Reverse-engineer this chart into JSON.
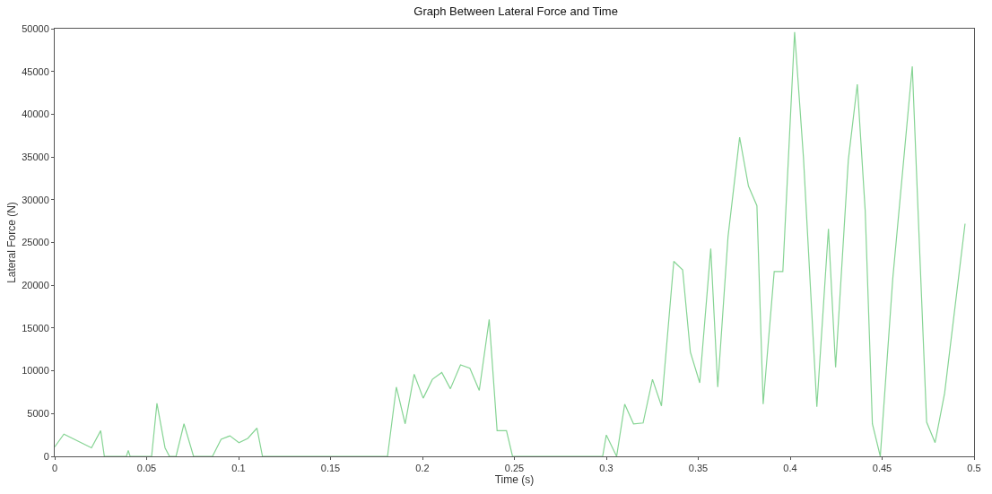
{
  "chart_data": {
    "type": "line",
    "title": "Graph Between Lateral Force and Time",
    "xlabel": "Time (s)",
    "ylabel": "Lateral Force (N)",
    "xlim": [
      0,
      0.5
    ],
    "ylim": [
      0,
      50000
    ],
    "xticks": [
      0,
      0.05,
      0.1,
      0.15,
      0.2,
      0.25,
      0.3,
      0.35,
      0.4,
      0.45,
      0.5
    ],
    "yticks": [
      0,
      5000,
      10000,
      15000,
      20000,
      25000,
      30000,
      35000,
      40000,
      45000,
      50000
    ],
    "marker": "none",
    "line_style": "solid",
    "series": [
      {
        "color": "#86d494",
        "x": [
          0,
          0.005,
          0.02,
          0.025,
          0.027,
          0.039,
          0.04,
          0.041,
          0.0527,
          0.0556,
          0.06,
          0.0624,
          0.066,
          0.0703,
          0.0755,
          0.0858,
          0.0905,
          0.0953,
          0.1002,
          0.105,
          0.11,
          0.113,
          0.181,
          0.1858,
          0.1906,
          0.1955,
          0.2004,
          0.2054,
          0.2105,
          0.2152,
          0.2207,
          0.2258,
          0.2309,
          0.2363,
          0.2406,
          0.2457,
          0.249,
          0.298,
          0.3,
          0.3056,
          0.31,
          0.3148,
          0.32,
          0.3251,
          0.33,
          0.3367,
          0.3415,
          0.3457,
          0.3508,
          0.3568,
          0.3606,
          0.3662,
          0.3725,
          0.3773,
          0.3819,
          0.3853,
          0.3913,
          0.396,
          0.4024,
          0.4072,
          0.4145,
          0.4208,
          0.4247,
          0.4316,
          0.4365,
          0.4408,
          0.4447,
          0.449,
          0.4558,
          0.4664,
          0.4703,
          0.4742,
          0.4788,
          0.484,
          0.4951
        ],
        "values": [
          1100,
          2600,
          1000,
          3000,
          0,
          0,
          700,
          0,
          0,
          6200,
          1000,
          0,
          0,
          3800,
          0,
          0,
          2000,
          2400,
          1600,
          2100,
          3300,
          0,
          0,
          8100,
          3800,
          9600,
          6800,
          9000,
          9800,
          7900,
          10700,
          10300,
          7700,
          16000,
          3000,
          3000,
          0,
          0,
          2500,
          0,
          6100,
          3800,
          3900,
          9000,
          5900,
          22800,
          21800,
          12200,
          8600,
          24300,
          8100,
          25700,
          37300,
          31600,
          29300,
          6100,
          21600,
          21600,
          49600,
          35000,
          5800,
          26600,
          10400,
          34600,
          43500,
          28700,
          3800,
          0,
          20800,
          45600,
          24600,
          4000,
          1600,
          7400,
          27200
        ]
      }
    ]
  }
}
